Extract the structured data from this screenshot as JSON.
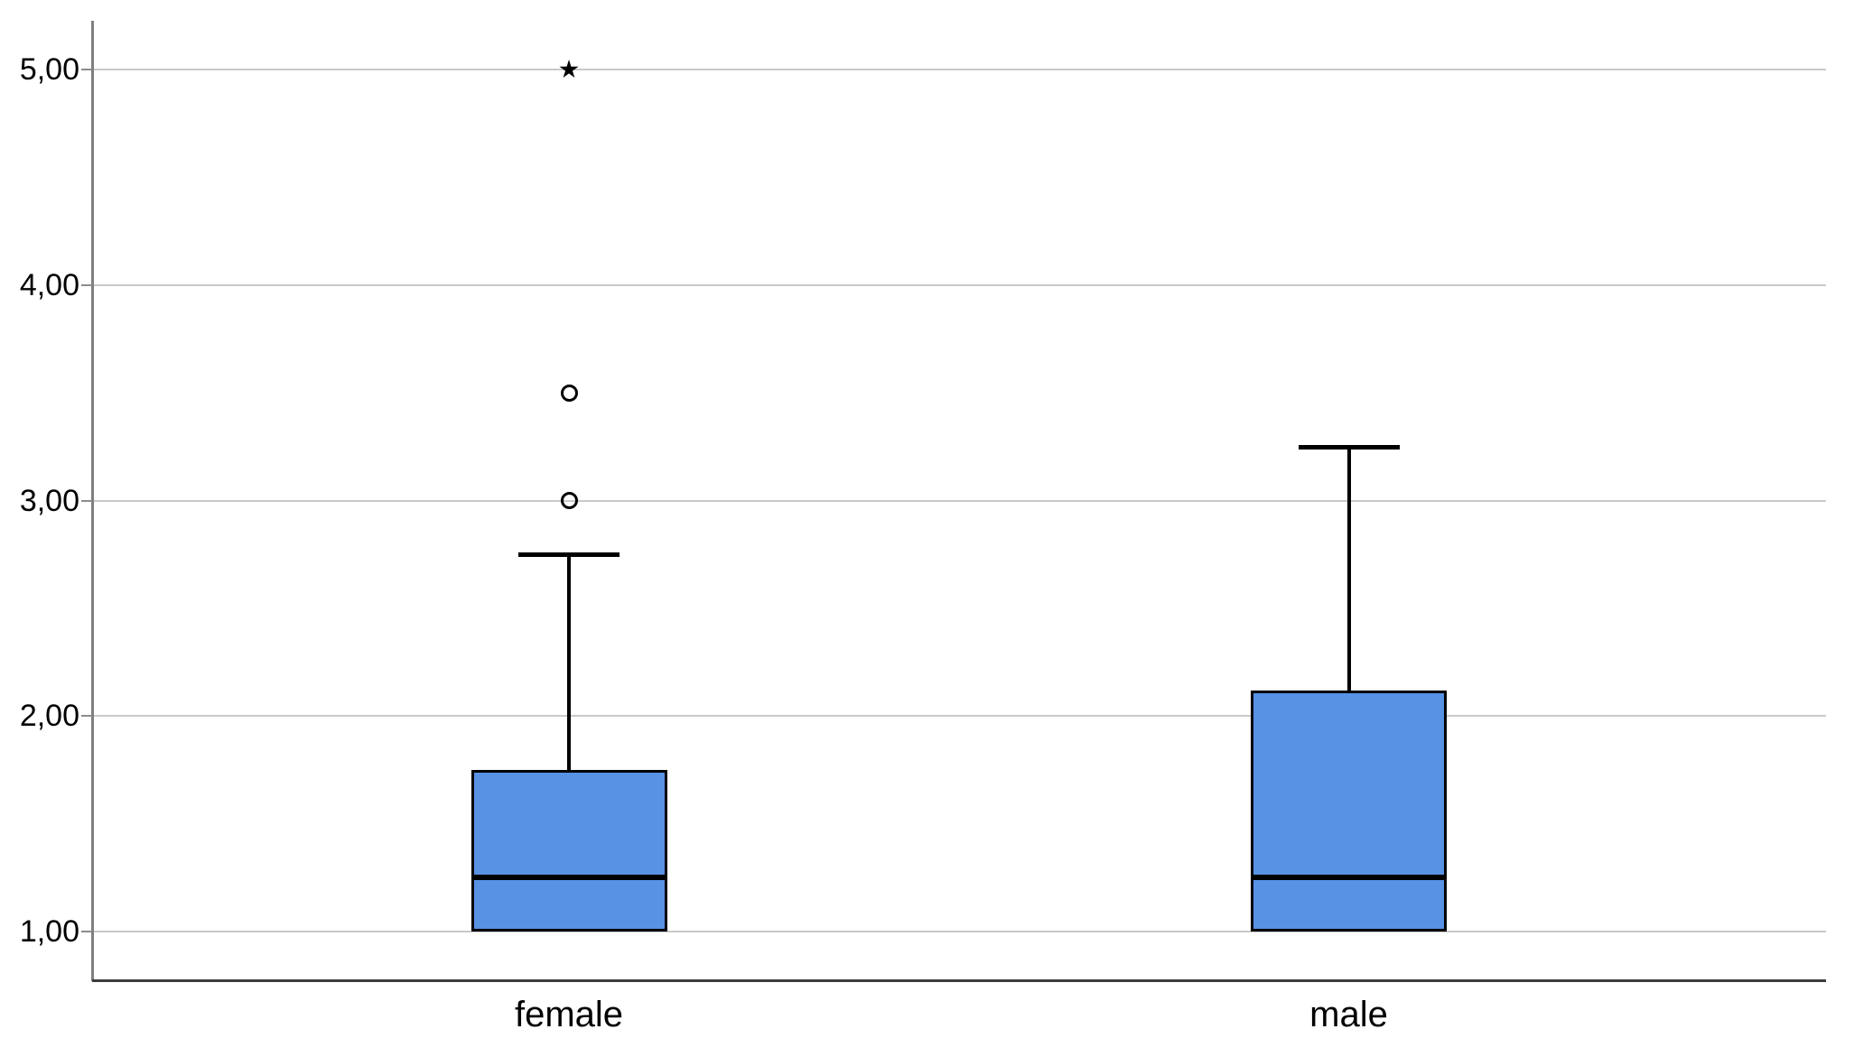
{
  "chart_data": {
    "type": "boxplot",
    "title": "",
    "xlabel": "",
    "ylabel": "",
    "orientation": "vertical",
    "grid": "horizontal",
    "legend": "none",
    "decimal_separator": "comma",
    "ylim": [
      1,
      5
    ],
    "y_ticks": [
      "1,00",
      "2,00",
      "3,00",
      "4,00",
      "5,00"
    ],
    "y_tick_values": [
      1,
      2,
      3,
      4,
      5
    ],
    "categories": [
      "female",
      "male"
    ],
    "box_fill_color": "#5792E5",
    "box_line_color": "#000000",
    "gridline_color": "#c9c9c9",
    "boxes": [
      {
        "category": "female",
        "whisker_low": 1.0,
        "q1": 1.0,
        "median": 1.25,
        "q3": 1.75,
        "whisker_high": 2.75,
        "outliers": [
          {
            "value": 3.0,
            "marker": "circle"
          },
          {
            "value": 3.5,
            "marker": "circle"
          },
          {
            "value": 5.0,
            "marker": "star-extreme"
          }
        ]
      },
      {
        "category": "male",
        "whisker_low": 1.0,
        "q1": 1.0,
        "median": 1.25,
        "q3": 2.12,
        "whisker_high": 3.25,
        "outliers": []
      }
    ]
  }
}
